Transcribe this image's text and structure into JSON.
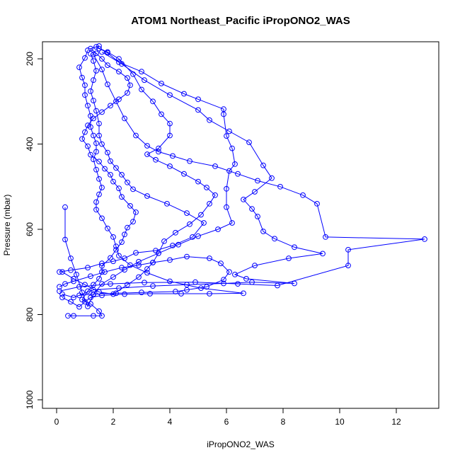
{
  "chart_data": {
    "type": "line",
    "title": "ATOM1 Northeast_Pacific iPropONO2_WAS",
    "xlabel": "iPropONO2_WAS",
    "ylabel": "Pressure (mbar)",
    "xlim": [
      -0.5,
      13.5
    ],
    "ylim": [
      1020,
      160
    ],
    "y_reversed": true,
    "x_ticks": [
      0,
      2,
      4,
      6,
      8,
      10,
      12
    ],
    "x_tick_labels": [
      "0",
      "2",
      "4",
      "6",
      "8",
      "10",
      "12"
    ],
    "y_ticks": [
      200,
      400,
      600,
      800,
      1000
    ],
    "y_tick_labels": [
      "200",
      "400",
      "600",
      "800",
      "1000"
    ],
    "grid": false,
    "marker": "open-circle",
    "series_color": "#0000ff",
    "series": [
      {
        "points": [
          [
            0.4,
            803
          ],
          [
            0.6,
            803
          ],
          [
            1.3,
            803
          ],
          [
            1.6,
            803
          ],
          [
            1.5,
            792
          ],
          [
            1.2,
            775
          ],
          [
            0.9,
            765
          ],
          [
            1.1,
            745
          ],
          [
            1.3,
            730
          ],
          [
            1.5,
            716
          ],
          [
            1.6,
            700
          ],
          [
            1.6,
            686
          ],
          [
            1.9,
            667
          ],
          [
            2.1,
            648
          ],
          [
            2.3,
            630
          ],
          [
            2.4,
            612
          ],
          [
            2.5,
            596
          ],
          [
            2.7,
            582
          ],
          [
            2.8,
            560
          ],
          [
            2.6,
            545
          ],
          [
            2.3,
            524
          ],
          [
            2.2,
            504
          ],
          [
            2.0,
            488
          ],
          [
            1.9,
            472
          ],
          [
            1.7,
            458
          ],
          [
            1.5,
            441
          ],
          [
            1.2,
            425
          ],
          [
            1.1,
            405
          ],
          [
            0.9,
            388
          ],
          [
            1.0,
            372
          ],
          [
            1.1,
            356
          ],
          [
            1.3,
            340
          ],
          [
            1.6,
            325
          ],
          [
            1.9,
            310
          ],
          [
            2.2,
            295
          ],
          [
            2.5,
            280
          ],
          [
            2.6,
            262
          ],
          [
            2.5,
            245
          ],
          [
            2.2,
            230
          ],
          [
            1.8,
            215
          ],
          [
            1.6,
            200
          ],
          [
            1.4,
            187
          ],
          [
            1.2,
            176
          ],
          [
            1.5,
            170
          ]
        ]
      },
      {
        "points": [
          [
            0.2,
            700
          ],
          [
            0.6,
            716
          ],
          [
            1.0,
            730
          ],
          [
            1.5,
            747
          ],
          [
            2.0,
            752
          ],
          [
            2.5,
            730
          ],
          [
            2.9,
            712
          ],
          [
            3.2,
            693
          ],
          [
            3.4,
            678
          ],
          [
            3.6,
            656
          ],
          [
            3.8,
            628
          ],
          [
            4.2,
            608
          ],
          [
            4.7,
            588
          ],
          [
            5.1,
            566
          ],
          [
            5.4,
            540
          ],
          [
            5.6,
            520
          ],
          [
            5.3,
            502
          ],
          [
            5.0,
            488
          ],
          [
            4.5,
            470
          ],
          [
            4.0,
            452
          ],
          [
            3.5,
            437
          ],
          [
            3.2,
            424
          ],
          [
            3.6,
            410
          ],
          [
            4.0,
            380
          ],
          [
            4.0,
            352
          ],
          [
            3.7,
            330
          ],
          [
            3.4,
            300
          ],
          [
            3.0,
            272
          ],
          [
            2.7,
            236
          ],
          [
            2.2,
            200
          ],
          [
            1.8,
            184
          ],
          [
            1.5,
            176
          ]
        ]
      },
      {
        "points": [
          [
            0.3,
            548
          ],
          [
            0.3,
            624
          ],
          [
            0.5,
            668
          ],
          [
            0.7,
            706
          ],
          [
            0.9,
            748
          ],
          [
            1.1,
            781
          ],
          [
            1.3,
            753
          ],
          [
            1.6,
            728
          ],
          [
            2.0,
            712
          ],
          [
            2.4,
            695
          ],
          [
            2.9,
            676
          ],
          [
            3.6,
            656
          ],
          [
            4.3,
            636
          ],
          [
            5.0,
            616
          ],
          [
            5.7,
            600
          ],
          [
            6.2,
            585
          ],
          [
            6.0,
            548
          ],
          [
            6.0,
            505
          ],
          [
            6.1,
            463
          ],
          [
            6.3,
            447
          ],
          [
            6.2,
            410
          ],
          [
            6.0,
            381
          ],
          [
            5.9,
            330
          ],
          [
            5.9,
            318
          ],
          [
            5.0,
            295
          ],
          [
            4.5,
            282
          ],
          [
            3.7,
            258
          ],
          [
            3.0,
            230
          ],
          [
            2.2,
            208
          ],
          [
            1.8,
            186
          ],
          [
            1.4,
            172
          ]
        ]
      },
      {
        "points": [
          [
            0.2,
            752
          ],
          [
            0.6,
            760
          ],
          [
            1.3,
            742
          ],
          [
            2.2,
            738
          ],
          [
            3.4,
            733
          ],
          [
            4.6,
            730
          ],
          [
            5.9,
            727
          ],
          [
            6.9,
            724
          ],
          [
            8.4,
            727
          ],
          [
            6.7,
            716
          ],
          [
            6.3,
            706
          ],
          [
            7.0,
            685
          ],
          [
            8.2,
            668
          ],
          [
            9.4,
            657
          ],
          [
            8.4,
            642
          ],
          [
            7.7,
            622
          ],
          [
            7.3,
            605
          ],
          [
            7.1,
            570
          ],
          [
            6.9,
            552
          ],
          [
            6.6,
            530
          ],
          [
            7.0,
            512
          ],
          [
            7.6,
            480
          ],
          [
            7.3,
            450
          ],
          [
            6.8,
            396
          ],
          [
            6.1,
            370
          ],
          [
            5.4,
            344
          ],
          [
            5.0,
            320
          ],
          [
            4.0,
            285
          ],
          [
            3.1,
            250
          ],
          [
            2.3,
            212
          ],
          [
            1.6,
            184
          ]
        ]
      },
      {
        "points": [
          [
            0.1,
            745
          ],
          [
            0.8,
            735
          ],
          [
            1.9,
            728
          ],
          [
            3.1,
            725
          ],
          [
            4.9,
            724
          ],
          [
            6.4,
            728
          ],
          [
            7.8,
            732
          ],
          [
            10.3,
            685
          ],
          [
            10.3,
            648
          ],
          [
            13.0,
            623
          ],
          [
            9.5,
            618
          ],
          [
            9.2,
            540
          ],
          [
            8.7,
            520
          ],
          [
            7.9,
            500
          ],
          [
            7.1,
            486
          ],
          [
            6.4,
            470
          ],
          [
            5.6,
            452
          ],
          [
            4.7,
            440
          ],
          [
            4.1,
            428
          ],
          [
            3.6,
            418
          ],
          [
            3.2,
            404
          ],
          [
            2.8,
            380
          ],
          [
            2.4,
            340
          ],
          [
            2.1,
            300
          ],
          [
            1.8,
            260
          ],
          [
            1.6,
            225
          ],
          [
            1.3,
            190
          ]
        ]
      },
      {
        "points": [
          [
            0.2,
            760
          ],
          [
            0.5,
            770
          ],
          [
            0.8,
            782
          ],
          [
            1.0,
            770
          ],
          [
            1.2,
            760
          ],
          [
            1.6,
            755
          ],
          [
            2.4,
            752
          ],
          [
            3.3,
            751
          ],
          [
            4.4,
            751
          ],
          [
            5.4,
            751
          ],
          [
            6.6,
            750
          ],
          [
            5.1,
            738
          ],
          [
            4.0,
            722
          ],
          [
            3.2,
            702
          ],
          [
            2.6,
            684
          ],
          [
            2.2,
            662
          ],
          [
            2.1,
            640
          ],
          [
            2.0,
            618
          ],
          [
            1.8,
            598
          ],
          [
            1.6,
            574
          ],
          [
            1.4,
            554
          ],
          [
            1.4,
            536
          ],
          [
            1.5,
            518
          ],
          [
            1.6,
            502
          ],
          [
            1.5,
            482
          ],
          [
            1.4,
            460
          ],
          [
            1.3,
            436
          ],
          [
            1.4,
            418
          ],
          [
            1.4,
            398
          ],
          [
            1.3,
            380
          ],
          [
            1.2,
            360
          ],
          [
            1.2,
            334
          ],
          [
            1.1,
            310
          ],
          [
            1.0,
            285
          ],
          [
            1.0,
            262
          ],
          [
            0.9,
            244
          ],
          [
            0.8,
            220
          ],
          [
            1.0,
            198
          ],
          [
            1.1,
            180
          ]
        ]
      },
      {
        "points": [
          [
            0.1,
            700
          ],
          [
            0.5,
            696
          ],
          [
            1.1,
            690
          ],
          [
            1.6,
            680
          ],
          [
            2.0,
            675
          ],
          [
            2.4,
            668
          ],
          [
            2.8,
            655
          ],
          [
            3.5,
            650
          ],
          [
            4.1,
            638
          ],
          [
            4.8,
            618
          ],
          [
            5.2,
            585
          ],
          [
            4.6,
            562
          ],
          [
            3.9,
            540
          ],
          [
            3.2,
            522
          ],
          [
            2.7,
            506
          ],
          [
            2.5,
            490
          ],
          [
            2.3,
            472
          ],
          [
            2.1,
            456
          ],
          [
            1.9,
            440
          ],
          [
            1.8,
            420
          ],
          [
            1.6,
            400
          ],
          [
            1.5,
            380
          ],
          [
            1.5,
            352
          ],
          [
            1.4,
            322
          ],
          [
            1.3,
            298
          ],
          [
            1.2,
            276
          ],
          [
            1.3,
            250
          ],
          [
            1.4,
            228
          ],
          [
            1.3,
            205
          ],
          [
            1.2,
            188
          ]
        ]
      },
      {
        "points": [
          [
            0.1,
            735
          ],
          [
            0.3,
            728
          ],
          [
            0.6,
            722
          ],
          [
            1.2,
            710
          ],
          [
            1.7,
            700
          ],
          [
            2.3,
            690
          ],
          [
            2.9,
            684
          ],
          [
            3.4,
            678
          ],
          [
            4.0,
            672
          ],
          [
            4.6,
            664
          ],
          [
            5.4,
            668
          ],
          [
            5.8,
            680
          ],
          [
            6.1,
            700
          ],
          [
            5.9,
            718
          ],
          [
            5.3,
            735
          ],
          [
            4.6,
            742
          ],
          [
            4.2,
            746
          ],
          [
            3.0,
            748
          ],
          [
            2.1,
            750
          ],
          [
            1.3,
            752
          ],
          [
            0.8,
            755
          ]
        ]
      }
    ]
  }
}
